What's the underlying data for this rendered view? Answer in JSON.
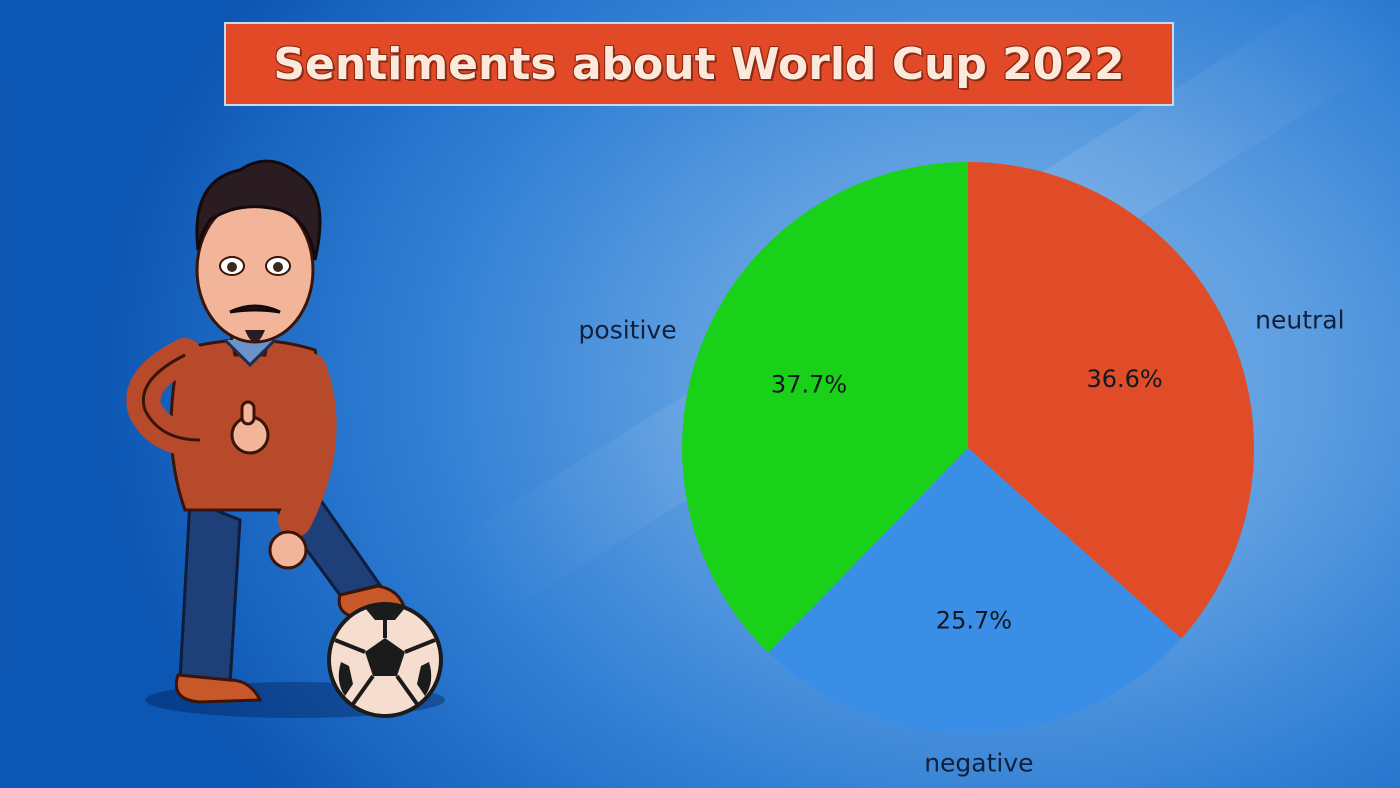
{
  "title": "Sentiments about World Cup 2022",
  "colors": {
    "positive": "#1ad11a",
    "neutral": "#e04c27",
    "negative": "#3b8ee6",
    "banner": "#e24a27"
  },
  "illustration": {
    "name": "cartoon-man-with-soccer-ball",
    "icons": [
      "avatar-icon",
      "soccer-ball-icon"
    ]
  },
  "chart_data": {
    "type": "pie",
    "title": "Sentiments about World Cup 2022",
    "start_angle_deg": 90,
    "direction": "counterclockwise",
    "slices": [
      {
        "label": "positive",
        "value": 37.7,
        "pct_label": "37.7%"
      },
      {
        "label": "negative",
        "value": 25.7,
        "pct_label": "25.7%"
      },
      {
        "label": "neutral",
        "value": 36.6,
        "pct_label": "36.6%"
      }
    ],
    "legend": "none"
  }
}
